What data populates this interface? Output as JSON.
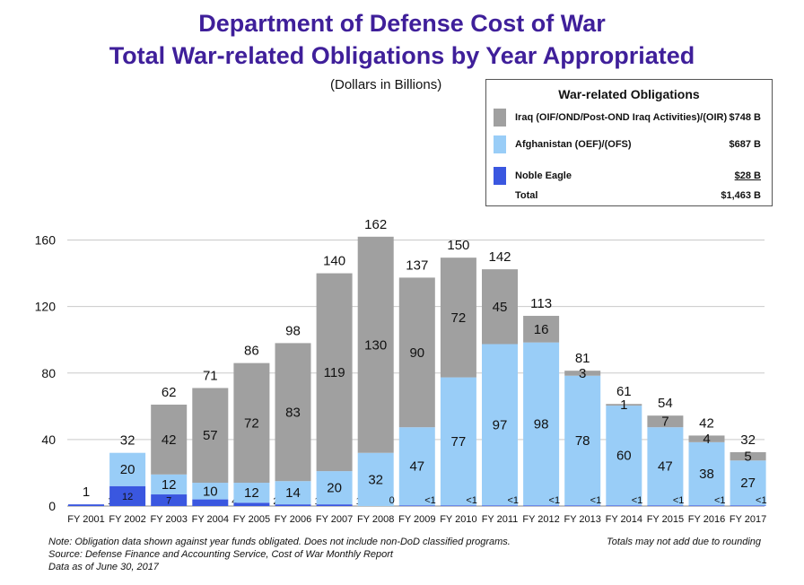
{
  "title_line1": "Department of Defense Cost of War",
  "title_line2": "Total War-related Obligations by Year Appropriated",
  "subtitle": "(Dollars in Billions)",
  "legend": {
    "title": "War-related Obligations",
    "items": [
      {
        "label": "Iraq (OIF/OND/Post-OND Iraq Activities)/(OIR)",
        "value": "$748 B"
      },
      {
        "label": "Afghanistan (OEF)/(OFS)",
        "value": "$687 B"
      },
      {
        "label": "Noble Eagle",
        "value": "$28 B"
      }
    ],
    "total_label": "Total",
    "total_value": "$1,463 B"
  },
  "colors": {
    "iraq": "#a0a0a0",
    "afghanistan": "#99cdf7",
    "noble_eagle": "#3a57e0",
    "title": "#3f1f9a"
  },
  "notes": {
    "line1": "Note:  Obligation data shown against year funds obligated.  Does not include non-DoD classified programs.",
    "line2": "Source:  Defense Finance and Accounting Service, Cost of War Monthly Report",
    "line3": "Data as of June 30, 2017",
    "rounding": "Totals may not add due to rounding"
  },
  "chart_data": {
    "type": "bar",
    "stacked": true,
    "categories": [
      "FY 2001",
      "FY 2002",
      "FY 2003",
      "FY 2004",
      "FY 2005",
      "FY 2006",
      "FY 2007",
      "FY 2008",
      "FY 2009",
      "FY 2010",
      "FY 2011",
      "FY 2012",
      "FY 2013",
      "FY 2014",
      "FY 2015",
      "FY 2016",
      "FY 2017"
    ],
    "series": [
      {
        "name": "Noble Eagle",
        "values": [
          1,
          12,
          7,
          4,
          2,
          1,
          1,
          0,
          0.4,
          0.4,
          0.4,
          0.4,
          0.4,
          0.4,
          0.4,
          0.4,
          0.4
        ],
        "labels": [
          "1",
          "12",
          "7",
          "4",
          "2",
          "1",
          "1",
          "0",
          "<1",
          "<1",
          "<1",
          "<1",
          "<1",
          "<1",
          "<1",
          "<1",
          "<1"
        ]
      },
      {
        "name": "Afghanistan (OEF)/(OFS)",
        "values": [
          0,
          20,
          12,
          10,
          12,
          14,
          20,
          32,
          47,
          77,
          97,
          98,
          78,
          60,
          47,
          38,
          27
        ],
        "labels": [
          "",
          "20",
          "12",
          "10",
          "12",
          "14",
          "20",
          "32",
          "47",
          "77",
          "97",
          "98",
          "78",
          "60",
          "47",
          "38",
          "27"
        ]
      },
      {
        "name": "Iraq (OIF/OND/Post-OND Iraq Activities)/(OIR)",
        "values": [
          0,
          0,
          42,
          57,
          72,
          83,
          119,
          130,
          90,
          72,
          45,
          16,
          3,
          1,
          7,
          4,
          5
        ],
        "labels": [
          "",
          "",
          "42",
          "57",
          "72",
          "83",
          "119",
          "130",
          "90",
          "72",
          "45",
          "16",
          "3",
          "1",
          "7",
          "4",
          "5"
        ]
      }
    ],
    "totals": [
      "1",
      "32",
      "62",
      "71",
      "86",
      "98",
      "140",
      "162",
      "137",
      "150",
      "142",
      "113",
      "81",
      "61",
      "54",
      "42",
      "32"
    ],
    "yticks": [
      0,
      40,
      80,
      120,
      160
    ],
    "ylim": [
      0,
      170
    ],
    "grid": true
  }
}
